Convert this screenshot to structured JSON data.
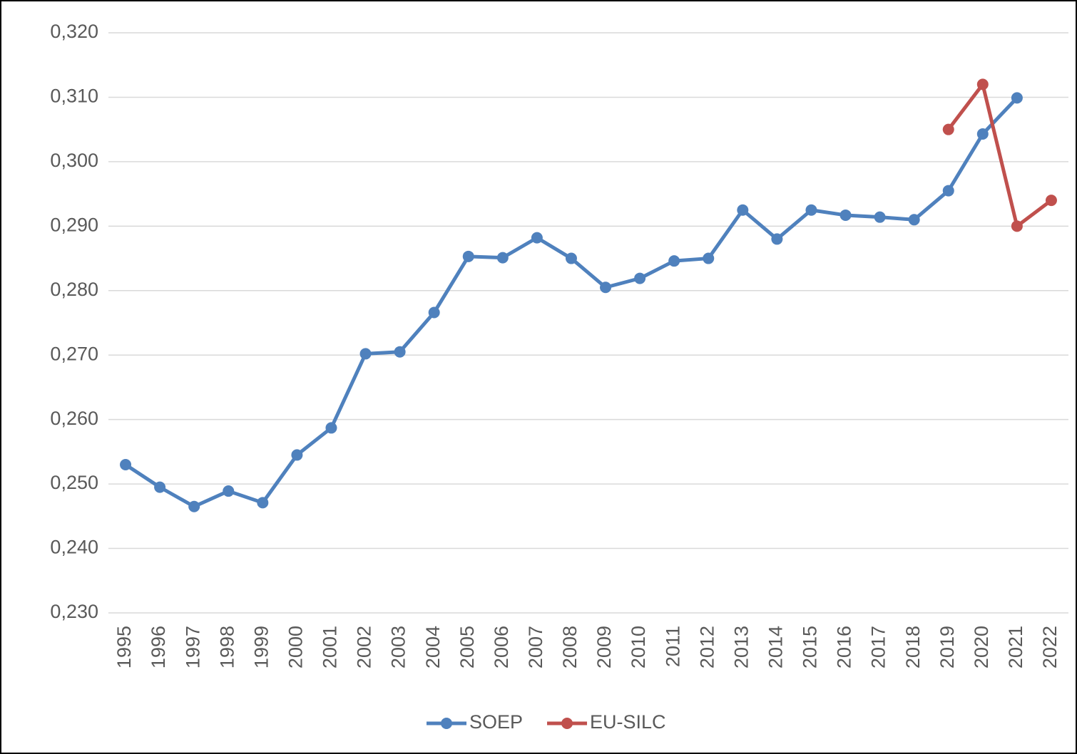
{
  "chart_data": {
    "type": "line",
    "categories": [
      "1995",
      "1996",
      "1997",
      "1998",
      "1999",
      "2000",
      "2001",
      "2002",
      "2003",
      "2004",
      "2005",
      "2006",
      "2007",
      "2008",
      "2009",
      "2010",
      "2011",
      "2012",
      "2013",
      "2014",
      "2015",
      "2016",
      "2017",
      "2018",
      "2019",
      "2020",
      "2021",
      "2022"
    ],
    "series": [
      {
        "name": "SOEP",
        "color": "#4f81bd",
        "values": [
          0.253,
          0.2495,
          0.2465,
          0.2489,
          0.2471,
          0.2545,
          0.2587,
          0.2702,
          0.2705,
          0.2766,
          0.2853,
          0.2851,
          0.2882,
          0.285,
          0.2805,
          0.2819,
          0.2846,
          0.285,
          0.2925,
          0.288,
          0.2925,
          0.2917,
          0.2914,
          0.291,
          0.2955,
          0.3043,
          0.3099,
          null
        ]
      },
      {
        "name": "EU-SILC",
        "color": "#c0504d",
        "values": [
          null,
          null,
          null,
          null,
          null,
          null,
          null,
          null,
          null,
          null,
          null,
          null,
          null,
          null,
          null,
          null,
          null,
          null,
          null,
          null,
          null,
          null,
          null,
          null,
          0.305,
          0.312,
          0.29,
          0.294
        ]
      }
    ],
    "ylim": [
      0.23,
      0.32
    ],
    "yticks": [
      {
        "value": 0.23,
        "label": "0,230"
      },
      {
        "value": 0.24,
        "label": "0,240"
      },
      {
        "value": 0.25,
        "label": "0,250"
      },
      {
        "value": 0.26,
        "label": "0,260"
      },
      {
        "value": 0.27,
        "label": "0,270"
      },
      {
        "value": 0.28,
        "label": "0,280"
      },
      {
        "value": 0.29,
        "label": "0,290"
      },
      {
        "value": 0.3,
        "label": "0,300"
      },
      {
        "value": 0.31,
        "label": "0,310"
      },
      {
        "value": 0.32,
        "label": "0,320"
      }
    ],
    "grid": true,
    "legend": "bottom"
  }
}
